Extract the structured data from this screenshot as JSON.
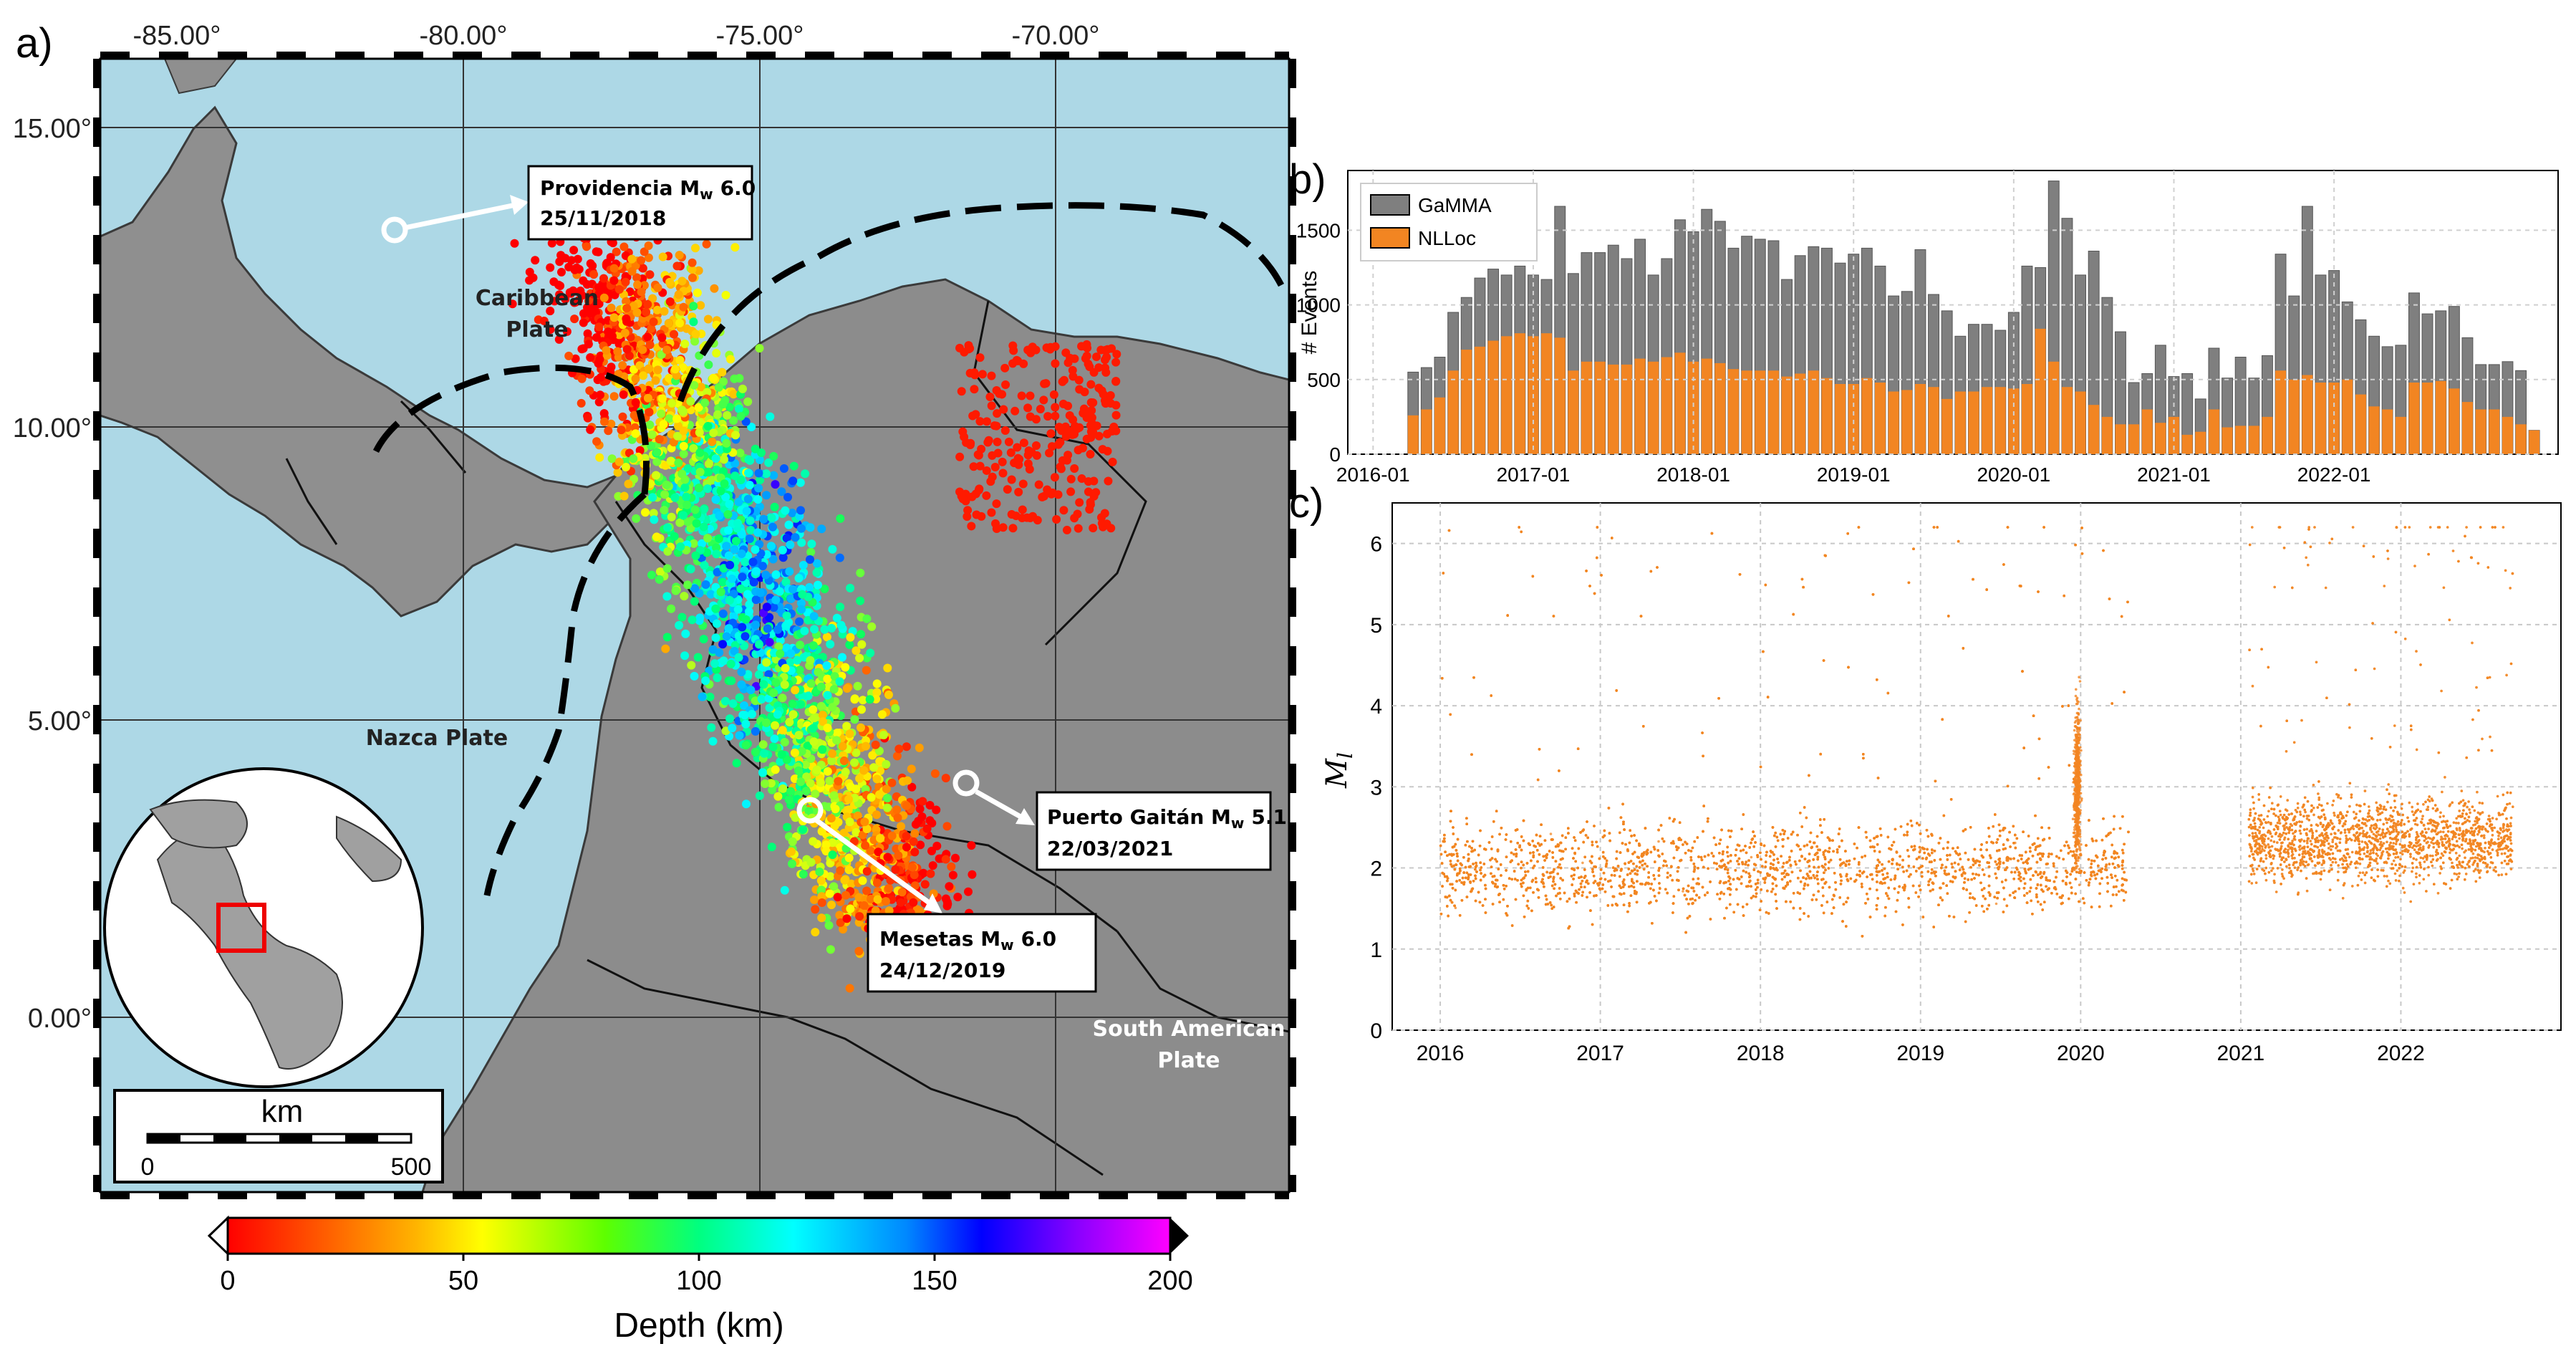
{
  "panels": {
    "a": {
      "label": "a)",
      "lon_ticks": [
        "-85.00°",
        "-80.00°",
        "-75.00°",
        "-70.00°"
      ],
      "lat_ticks": [
        "15.00°",
        "10.00°",
        "5.00°",
        "0.00°"
      ],
      "annotations": {
        "providencia": {
          "title": "Providencia M",
          "sub": "w",
          "mag": "6.0",
          "date": "25/11/2018"
        },
        "gaitan": {
          "title": "Puerto Gaitán M",
          "sub": "w",
          "mag": "5.1",
          "date": "22/03/2021"
        },
        "mesetas": {
          "title": "Mesetas M",
          "sub": "w",
          "mag": "6.0",
          "date": "24/12/2019"
        }
      },
      "plates": {
        "caribbean_1": "Caribbean",
        "caribbean_2": "Plate",
        "nazca": "Nazca Plate",
        "south_american_1": "South American",
        "south_american_2": "Plate"
      },
      "scalebar": {
        "unit": "km",
        "min": "0",
        "max": "500"
      },
      "colorbar": {
        "label": "Depth (km)",
        "ticks": [
          "0",
          "50",
          "100",
          "150",
          "200"
        ]
      }
    },
    "b": {
      "label": "b)"
    },
    "c": {
      "label": "c)"
    }
  },
  "chart_data": [
    {
      "type": "bar",
      "panel": "b",
      "ylabel": "# Events",
      "ylim": [
        0,
        1900
      ],
      "yticks": [
        "0",
        "500",
        "1000",
        "1500"
      ],
      "xticks": [
        "2016-01",
        "2017-01",
        "2018-01",
        "2019-01",
        "2020-01",
        "2021-01",
        "2022-01"
      ],
      "legend": [
        "GaMMA",
        "NLLoc"
      ],
      "legend_position": "top-left",
      "months_start": "2016-01",
      "series": [
        {
          "name": "GaMMA",
          "color": "#7f7f7f",
          "values": [
            0,
            0,
            0,
            550,
            580,
            650,
            950,
            1050,
            1180,
            1240,
            1200,
            1260,
            1200,
            1170,
            1660,
            1210,
            1350,
            1350,
            1400,
            1310,
            1440,
            1200,
            1310,
            1570,
            1490,
            1640,
            1560,
            1380,
            1460,
            1440,
            1430,
            1170,
            1330,
            1390,
            1380,
            1280,
            1340,
            1380,
            1260,
            1060,
            1090,
            1370,
            1070,
            960,
            790,
            870,
            870,
            830,
            950,
            1260,
            1250,
            1830,
            1580,
            1200,
            1360,
            1050,
            820,
            480,
            540,
            730,
            520,
            540,
            370,
            710,
            510,
            650,
            510,
            660,
            1340,
            1060,
            1660,
            1200,
            1230,
            1020,
            900,
            790,
            720,
            730,
            1080,
            940,
            960,
            990,
            780,
            600,
            600,
            620,
            560,
            160
          ]
        },
        {
          "name": "NLLoc",
          "color": "#f28522",
          "values": [
            0,
            0,
            0,
            260,
            300,
            380,
            560,
            700,
            720,
            760,
            790,
            810,
            790,
            810,
            780,
            560,
            620,
            620,
            600,
            600,
            640,
            620,
            650,
            680,
            620,
            640,
            610,
            570,
            560,
            560,
            560,
            520,
            540,
            560,
            510,
            470,
            470,
            510,
            480,
            420,
            430,
            470,
            450,
            370,
            420,
            420,
            450,
            450,
            440,
            470,
            840,
            620,
            450,
            420,
            330,
            250,
            200,
            200,
            300,
            210,
            250,
            130,
            150,
            300,
            180,
            190,
            190,
            250,
            560,
            500,
            530,
            480,
            480,
            500,
            400,
            320,
            300,
            250,
            480,
            480,
            490,
            440,
            350,
            300,
            300,
            250,
            200,
            160
          ]
        }
      ]
    },
    {
      "type": "scatter",
      "panel": "c",
      "ylabel": "M",
      "ylabel_sub": "l",
      "ylim": [
        0,
        6.5
      ],
      "xlim": [
        2015.7,
        2023.0
      ],
      "yticks": [
        "0",
        "1",
        "2",
        "3",
        "4",
        "5",
        "6"
      ],
      "xticks": [
        "2016",
        "2017",
        "2018",
        "2019",
        "2020",
        "2021",
        "2022"
      ],
      "color": "#f28522",
      "segments": [
        {
          "x": [
            2016.0,
            2020.3
          ],
          "center": 2.0,
          "spread": 0.55
        },
        {
          "x": [
            2021.05,
            2022.7
          ],
          "center": 2.35,
          "spread": 0.5
        }
      ],
      "swarms": [
        {
          "x": 2019.98,
          "center": 3.0,
          "spread": 0.9
        }
      ]
    }
  ]
}
